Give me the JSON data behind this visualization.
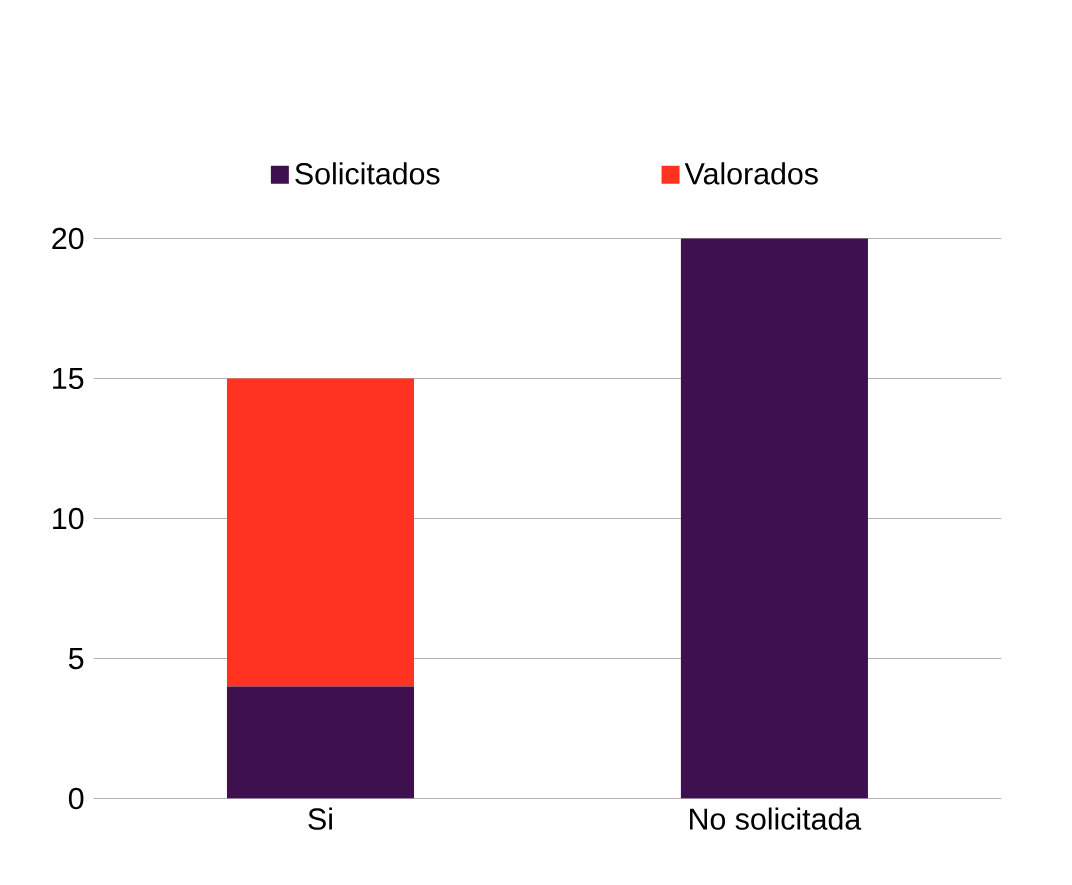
{
  "chart_data": {
    "type": "bar",
    "stacked": true,
    "categories": [
      "Si",
      "No solicitada"
    ],
    "series": [
      {
        "name": "Solicitados",
        "color": "#3f1050",
        "values": [
          4,
          20
        ]
      },
      {
        "name": "Valorados",
        "color": "#ff3320",
        "values": [
          11,
          null
        ]
      }
    ],
    "ylim": [
      0,
      20
    ],
    "yticks": [
      0,
      5,
      10,
      15,
      20
    ],
    "grid": "y",
    "legend": "top"
  }
}
